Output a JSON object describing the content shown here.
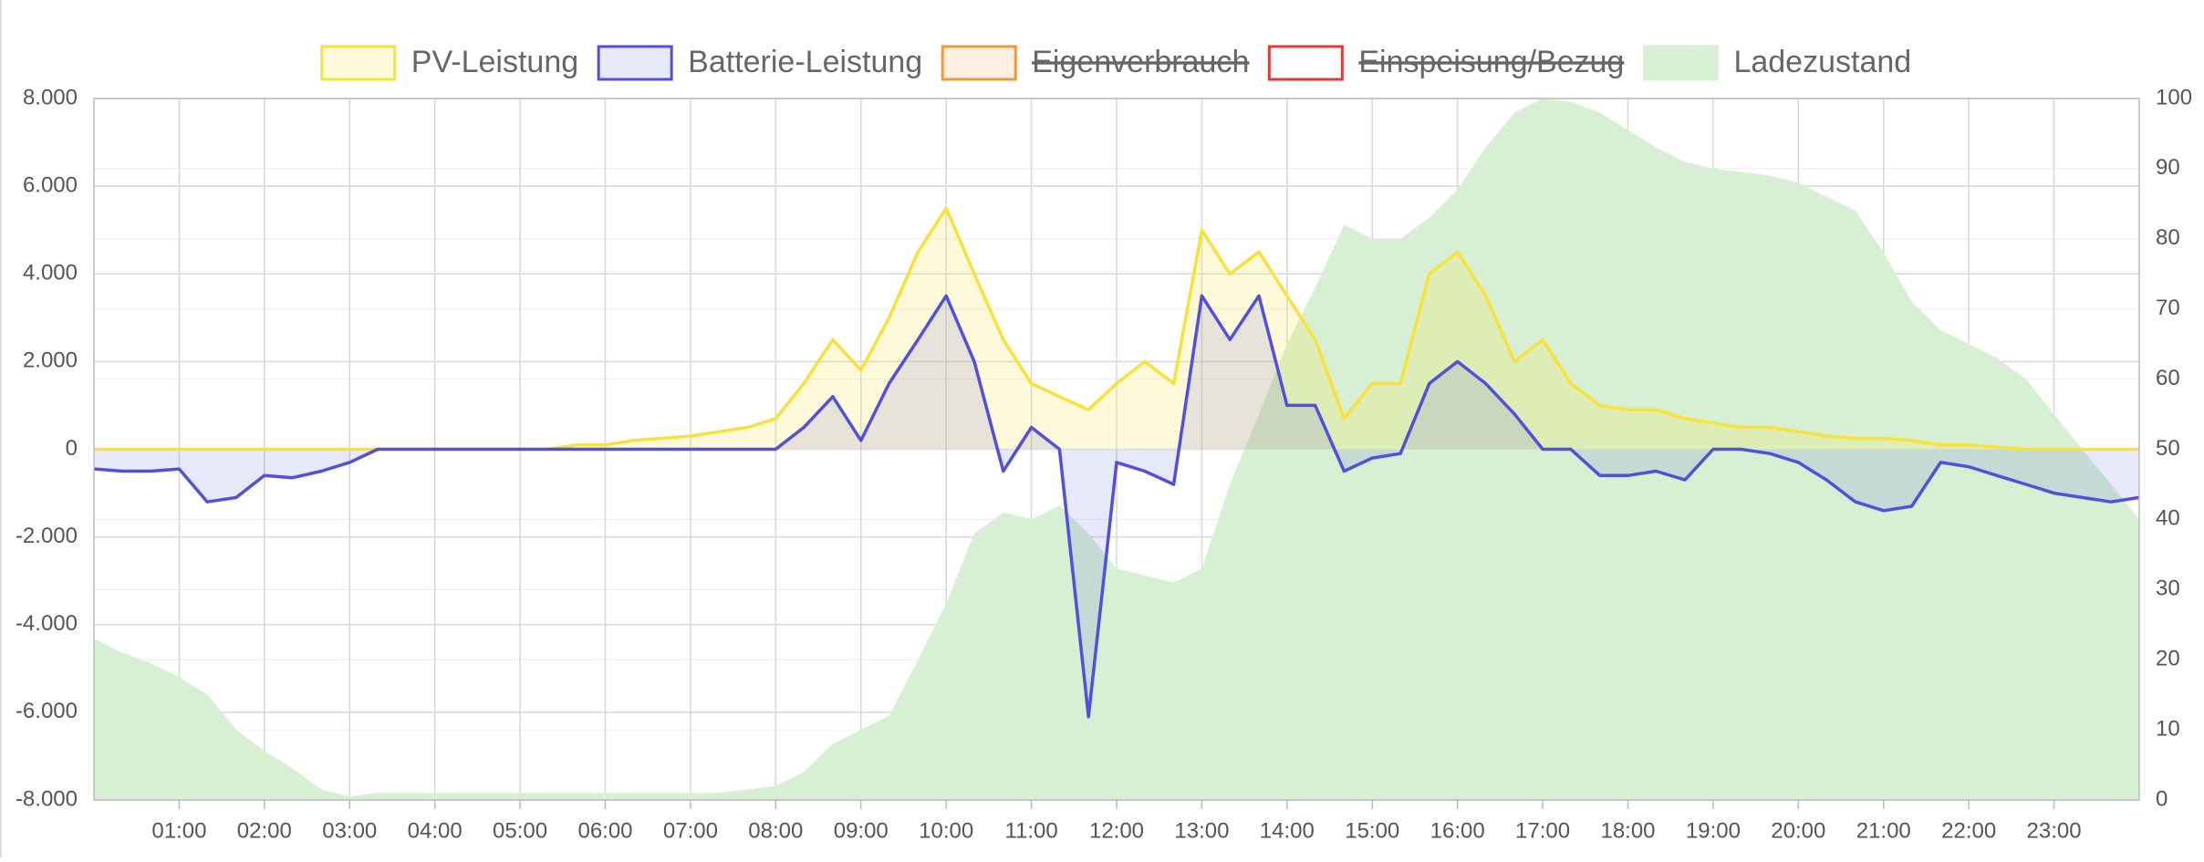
{
  "chart_data": {
    "type": "line",
    "x": [
      0,
      0.33,
      0.67,
      1,
      1.33,
      1.67,
      2,
      2.33,
      2.67,
      3,
      3.33,
      3.67,
      4,
      4.33,
      4.67,
      5,
      5.33,
      5.67,
      6,
      6.33,
      6.67,
      7,
      7.33,
      7.67,
      8,
      8.33,
      8.67,
      9,
      9.33,
      9.67,
      10,
      10.33,
      10.67,
      11,
      11.33,
      11.67,
      12,
      12.33,
      12.67,
      13,
      13.33,
      13.67,
      14,
      14.33,
      14.67,
      15,
      15.33,
      15.67,
      16,
      16.33,
      16.67,
      17,
      17.33,
      17.67,
      18,
      18.33,
      18.67,
      19,
      19.33,
      19.67,
      20,
      20.33,
      20.67,
      21,
      21.33,
      21.67,
      22,
      22.33,
      22.67,
      23,
      23.33,
      23.67,
      24
    ],
    "xlim": [
      0,
      24
    ],
    "xticks": [
      {
        "value": 1,
        "label": "01:00"
      },
      {
        "value": 2,
        "label": "02:00"
      },
      {
        "value": 3,
        "label": "03:00"
      },
      {
        "value": 4,
        "label": "04:00"
      },
      {
        "value": 5,
        "label": "05:00"
      },
      {
        "value": 6,
        "label": "06:00"
      },
      {
        "value": 7,
        "label": "07:00"
      },
      {
        "value": 8,
        "label": "08:00"
      },
      {
        "value": 9,
        "label": "09:00"
      },
      {
        "value": 10,
        "label": "10:00"
      },
      {
        "value": 11,
        "label": "11:00"
      },
      {
        "value": 12,
        "label": "12:00"
      },
      {
        "value": 13,
        "label": "13:00"
      },
      {
        "value": 14,
        "label": "14:00"
      },
      {
        "value": 15,
        "label": "15:00"
      },
      {
        "value": 16,
        "label": "16:00"
      },
      {
        "value": 17,
        "label": "17:00"
      },
      {
        "value": 18,
        "label": "18:00"
      },
      {
        "value": 19,
        "label": "19:00"
      },
      {
        "value": 20,
        "label": "20:00"
      },
      {
        "value": 21,
        "label": "21:00"
      },
      {
        "value": 22,
        "label": "22:00"
      },
      {
        "value": 23,
        "label": "23:00"
      }
    ],
    "ylim": [
      -8000,
      8000
    ],
    "yticks": [
      {
        "value": 8000,
        "label": "8.000"
      },
      {
        "value": 6000,
        "label": "6.000"
      },
      {
        "value": 4000,
        "label": "4.000"
      },
      {
        "value": 2000,
        "label": "2.000"
      },
      0,
      {
        "value": -2000,
        "label": "-2.000"
      },
      {
        "value": -4000,
        "label": "-4.000"
      },
      {
        "value": -6000,
        "label": "-6.000"
      },
      {
        "value": -8000,
        "label": "-8.000"
      }
    ],
    "y2lim": [
      0,
      100
    ],
    "y2ticks": [
      100,
      90,
      80,
      70,
      60,
      50,
      40,
      30,
      20,
      10,
      0
    ],
    "grid": true,
    "legend": "top",
    "series": [
      {
        "name": "PV-Leistung",
        "color": "#f7e13a",
        "fill": "rgba(250,228,80,0.22)",
        "values": [
          0,
          0,
          0,
          0,
          0,
          0,
          0,
          0,
          0,
          0,
          0,
          0,
          0,
          0,
          0,
          0,
          0,
          100,
          100,
          200,
          250,
          300,
          400,
          500,
          700,
          1500,
          2500,
          1800,
          3000,
          4500,
          5500,
          4000,
          2500,
          1500,
          1200,
          900,
          1500,
          2000,
          1500,
          5000,
          4000,
          4500,
          3500,
          2500,
          700,
          1500,
          1500,
          4000,
          4500,
          3500,
          2000,
          2500,
          1500,
          1000,
          900,
          900,
          700,
          600,
          500,
          500,
          400,
          300,
          250,
          250,
          200,
          100,
          100,
          50,
          0,
          0,
          0,
          0,
          0
        ]
      },
      {
        "name": "Batterie-Leistung",
        "color": "#5050dd",
        "fill": "rgba(90,90,230,0.14)",
        "values": [
          -450,
          -500,
          -500,
          -450,
          -1200,
          -1100,
          -600,
          -650,
          -500,
          -300,
          0,
          0,
          0,
          0,
          0,
          0,
          0,
          0,
          0,
          0,
          0,
          0,
          0,
          0,
          0,
          500,
          1200,
          200,
          1500,
          2500,
          3500,
          2000,
          -500,
          500,
          0,
          -6100,
          -300,
          -500,
          -800,
          3500,
          2500,
          3500,
          1000,
          1000,
          -500,
          -200,
          -100,
          1500,
          2000,
          1500,
          800,
          0,
          0,
          -600,
          -600,
          -500,
          -700,
          0,
          0,
          -100,
          -300,
          -700,
          -1200,
          -1400,
          -1300,
          -300,
          -400,
          -600,
          -800,
          -1000,
          -1100,
          -1200,
          -1100
        ]
      },
      {
        "name": "Eigenverbrauch",
        "color": "#f0983a",
        "fill": "rgba(240,152,58,0.15)",
        "hidden": true
      },
      {
        "name": "Einspeisung/Bezug",
        "color": "#e03a3a",
        "fill": "rgba(255,255,255,0)",
        "hidden": true
      },
      {
        "name": "Ladezustand",
        "color": "#d7efd2",
        "fill": "#d7efd2",
        "axis": "y2",
        "area_only": true,
        "values": [
          23,
          21,
          19.5,
          17.5,
          15,
          10,
          7,
          4.5,
          1.5,
          0.5,
          1,
          1,
          1,
          1,
          1,
          1,
          1,
          1,
          1,
          1,
          1,
          1,
          1,
          1.5,
          2,
          4,
          8,
          10,
          12,
          20,
          28,
          38,
          41,
          40,
          42,
          38,
          33,
          32,
          31,
          33,
          45,
          55,
          65,
          73,
          82,
          80,
          80,
          83,
          87,
          93,
          98,
          100,
          99.5,
          98,
          95.5,
          93,
          91,
          90,
          89.5,
          89,
          88,
          86,
          84,
          78,
          71,
          67,
          65,
          63,
          60,
          55,
          50,
          45,
          40
        ]
      }
    ]
  }
}
